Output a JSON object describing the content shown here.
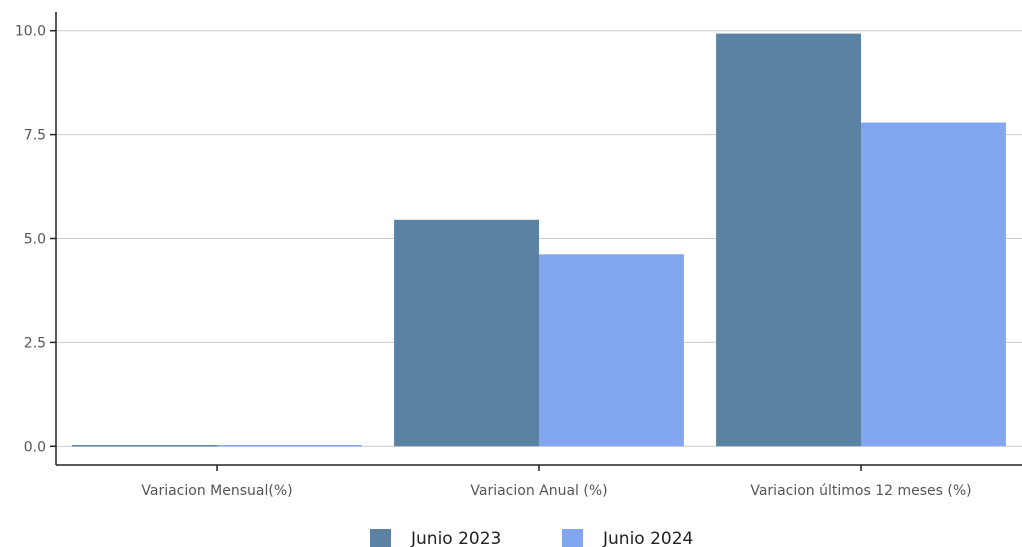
{
  "chart_data": {
    "type": "bar",
    "categories": [
      "Variacion Mensual(%)",
      "Variacion Anual (%)",
      "Variacion últimos 12 meses (%)"
    ],
    "series": [
      {
        "name": "Junio 2023",
        "color": "#5b81a3",
        "values": [
          0.03,
          5.45,
          9.93
        ]
      },
      {
        "name": "Junio 2024",
        "color": "#82a7ef",
        "values": [
          0.03,
          4.62,
          7.79
        ]
      }
    ],
    "yticks": [
      "0.0",
      "2.5",
      "5.0",
      "7.5",
      "10.0"
    ],
    "ylim": [
      -0.45,
      10.45
    ],
    "grid": true,
    "legend_position": "bottom"
  }
}
